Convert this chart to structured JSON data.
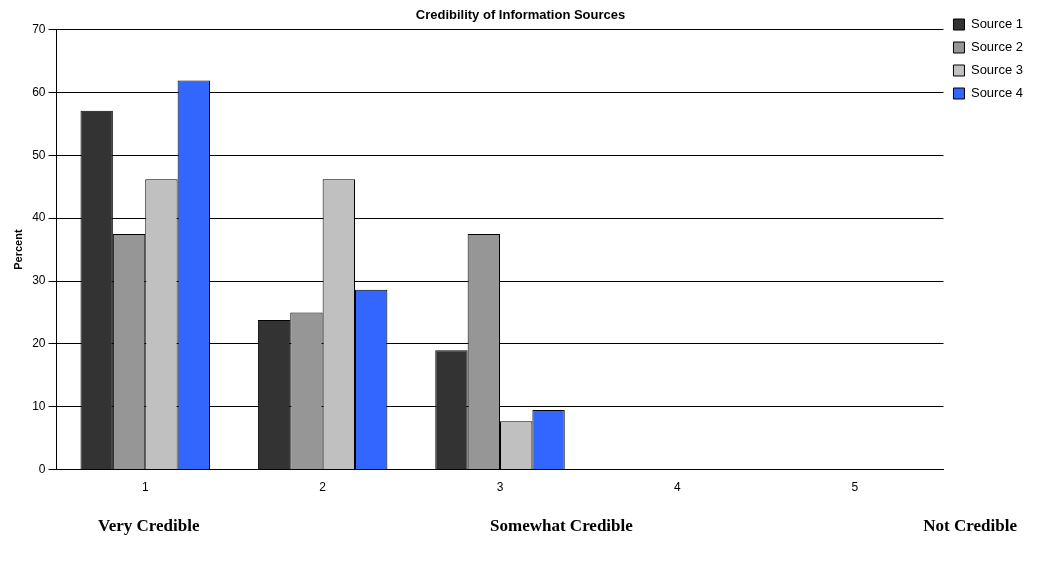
{
  "chart_data": {
    "type": "bar",
    "title": "Credibility of Information Sources",
    "ylabel": "Percent",
    "categories": [
      "1",
      "2",
      "3",
      "4",
      "5"
    ],
    "series": [
      {
        "name": "Source 1",
        "color": "#333333",
        "values": [
          57.1,
          23.8,
          19.0,
          0,
          0
        ]
      },
      {
        "name": "Source 2",
        "color": "#969696",
        "values": [
          37.5,
          25.0,
          37.5,
          0,
          0
        ]
      },
      {
        "name": "Source 3",
        "color": "#c0c0c0",
        "values": [
          46.2,
          46.2,
          7.7,
          0,
          0
        ]
      },
      {
        "name": "Source 4",
        "color": "#3366ff",
        "values": [
          61.9,
          28.6,
          9.5,
          0,
          0
        ]
      }
    ],
    "ylim": [
      0,
      70
    ],
    "yticks": [
      0,
      10,
      20,
      30,
      40,
      50,
      60,
      70
    ],
    "grid": "y",
    "legend": "top right",
    "annotations": [
      "Very Credible",
      "Somewhat Credible",
      "Not Credible"
    ]
  }
}
